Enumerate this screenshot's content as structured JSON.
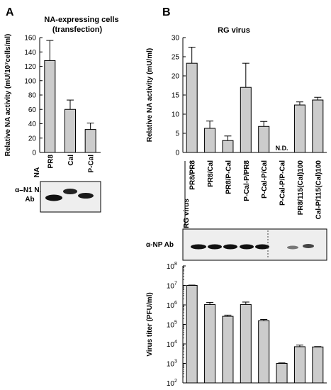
{
  "panel_a_letter": "A",
  "panel_b_letter": "B",
  "panel_a": {
    "title_line1": "NA-expressing cells",
    "title_line2": "(transfection)",
    "na_row_label": "NA",
    "blot_label_line1": "α–N1 NA",
    "blot_label_line2": "Ab"
  },
  "panel_b": {
    "title": "RG virus",
    "rg_virus_label": "RG virus",
    "blot_label": "α-NP Ab",
    "nd_label": "N.D."
  },
  "colors": {
    "bar_fill": "#cccccc",
    "bar_stroke": "#000000",
    "blot_bg": "#eeeeee"
  },
  "chart_data": [
    {
      "id": "A",
      "type": "bar",
      "ylabel": "Relative NA activity (mU/10⁷cells/ml)",
      "ylim": [
        0,
        160
      ],
      "yticks": [
        "0",
        "20",
        "40",
        "60",
        "80",
        "100",
        "120",
        "140",
        "160"
      ],
      "categories": [
        "PR8",
        "Cal",
        "P-Cal"
      ],
      "values": [
        128,
        60,
        32
      ],
      "errors": [
        28,
        13,
        9
      ]
    },
    {
      "id": "B-top",
      "type": "bar",
      "ylabel": "Relative NA activity (mU/ml)",
      "ylim": [
        0,
        30
      ],
      "yticks": [
        "0",
        "5",
        "10",
        "15",
        "20",
        "25",
        "30"
      ],
      "categories": [
        "PR8/PR8",
        "PR8/Cal",
        "PR8/P-Cal",
        "P-Cal-P/PR8",
        "P-Cal-P/Cal",
        "P-Cal-P/P-Cal",
        "PR8/115(Cal)100",
        "Cal-P/115(Cal)100"
      ],
      "values": [
        23.3,
        6.3,
        3.1,
        17.0,
        6.8,
        null,
        12.4,
        13.7
      ],
      "errors": [
        4.2,
        1.9,
        1.2,
        6.3,
        1.3,
        null,
        0.8,
        0.7
      ]
    },
    {
      "id": "B-bottom",
      "type": "bar",
      "ylabel": "Virus titer (PFU/ml)",
      "scale": "log",
      "ylim": [
        100,
        100000000
      ],
      "yticks": [
        {
          "base": "10",
          "exp": "2"
        },
        {
          "base": "10",
          "exp": "3"
        },
        {
          "base": "10",
          "exp": "4"
        },
        {
          "base": "10",
          "exp": "5"
        },
        {
          "base": "10",
          "exp": "6"
        },
        {
          "base": "10",
          "exp": "7"
        },
        {
          "base": "10",
          "exp": "8"
        }
      ],
      "categories": [
        "PR8/PR8",
        "PR8/Cal",
        "PR8/P-Cal",
        "P-Cal-P/PR8",
        "P-Cal-P/Cal",
        "P-Cal-P/P-Cal",
        "PR8/115(Cal)100",
        "Cal-P/115(Cal)100"
      ],
      "values": [
        10000000,
        1050000,
        260000,
        1050000,
        155000,
        1000,
        7200,
        7000
      ],
      "errors": [
        400000,
        300000,
        40000,
        350000,
        25000,
        60,
        1500,
        300
      ]
    }
  ]
}
